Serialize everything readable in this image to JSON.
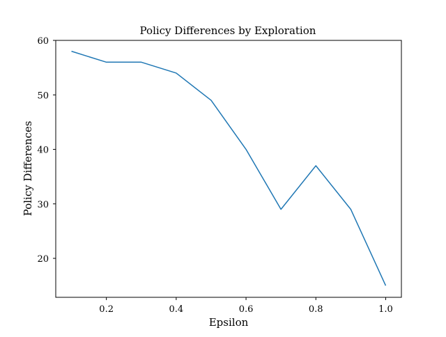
{
  "chart_data": {
    "type": "line",
    "title": "Policy Differences by Exploration",
    "xlabel": "Epsilon",
    "ylabel": "Policy Differences",
    "x": [
      0.1,
      0.2,
      0.3,
      0.4,
      0.5,
      0.6,
      0.7,
      0.8,
      0.9,
      1.0
    ],
    "series": [
      {
        "values": [
          58,
          56,
          56,
          54,
          49,
          40,
          29,
          37,
          29,
          15
        ],
        "color": "#1f77b4"
      }
    ],
    "xlim": [
      0.055,
      1.045
    ],
    "ylim": [
      12.85,
      60.0
    ],
    "xticks": [
      0.2,
      0.4,
      0.6,
      0.8,
      1.0
    ],
    "xtick_labels": [
      "0.2",
      "0.4",
      "0.6",
      "0.8",
      "1.0"
    ],
    "yticks": [
      20,
      30,
      40,
      50,
      60
    ],
    "ytick_labels": [
      "20",
      "30",
      "40",
      "50",
      "60"
    ],
    "grid": false,
    "legend": "none"
  }
}
